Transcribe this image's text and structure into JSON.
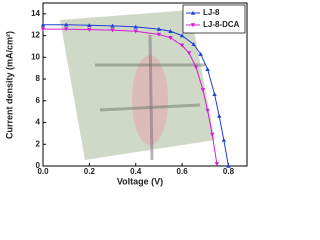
{
  "chart_data": {
    "type": "line",
    "x_label": "Voltage (V)",
    "y_label": "Current density (mA/cm²)",
    "xlim": [
      0,
      0.88
    ],
    "xticks": [
      {
        "value": 0,
        "label": "0.0"
      },
      0.2,
      0.4,
      0.6,
      0.8
    ],
    "ylim": [
      0,
      15
    ],
    "yticks": [
      0,
      2,
      4,
      6,
      8,
      10,
      12,
      14
    ],
    "legend": "top-right",
    "series": [
      {
        "name": "LJ-8",
        "color": "#1f3fd6",
        "marker": "triangle-up",
        "x": [
          0,
          0.1,
          0.2,
          0.3,
          0.4,
          0.5,
          0.55,
          0.6,
          0.65,
          0.68,
          0.71,
          0.74,
          0.76,
          0.78,
          0.8
        ],
        "values": [
          13.0,
          13.0,
          12.95,
          12.9,
          12.8,
          12.6,
          12.4,
          12.0,
          11.2,
          10.3,
          8.9,
          6.6,
          4.6,
          2.4,
          0.0
        ]
      },
      {
        "name": "LJ-8-DCA",
        "color": "#d21fd2",
        "marker": "triangle-down",
        "x": [
          0,
          0.1,
          0.2,
          0.3,
          0.4,
          0.5,
          0.55,
          0.6,
          0.63,
          0.66,
          0.69,
          0.71,
          0.73,
          0.75
        ],
        "values": [
          12.6,
          12.6,
          12.55,
          12.5,
          12.4,
          12.1,
          11.8,
          11.1,
          10.4,
          9.1,
          7.0,
          5.1,
          2.9,
          0.2
        ]
      }
    ]
  }
}
